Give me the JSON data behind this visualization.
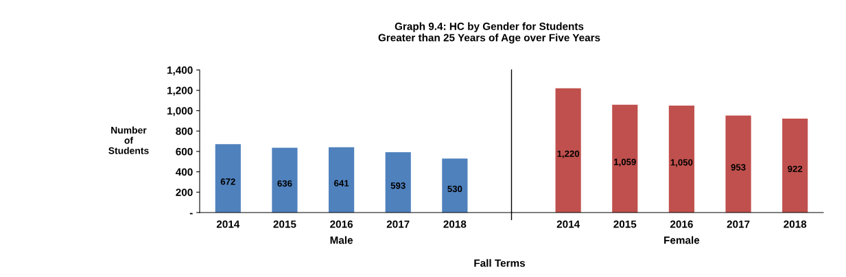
{
  "chart_data": {
    "type": "bar",
    "title": "Graph 9.4: HC by Gender for Students\nGreater than 25 Years of Age over Five Years",
    "xlabel": "Fall Terms",
    "ylabel": "Number\nof\nStudents",
    "categories": [
      "2014",
      "2015",
      "2016",
      "2017",
      "2018",
      null,
      "2014",
      "2015",
      "2016",
      "2017",
      "2018"
    ],
    "series": [
      {
        "name": "Male",
        "color": "#4f81bd",
        "values": [
          672,
          636,
          641,
          593,
          530,
          null,
          null,
          null,
          null,
          null,
          null
        ],
        "value_labels": [
          "672",
          "636",
          "641",
          "593",
          "530",
          null,
          null,
          null,
          null,
          null,
          null
        ]
      },
      {
        "name": "Female",
        "color": "#c0504d",
        "values": [
          null,
          null,
          null,
          null,
          null,
          null,
          1220,
          1059,
          1050,
          953,
          922
        ],
        "value_labels": [
          null,
          null,
          null,
          null,
          null,
          null,
          "1,220",
          "1,059",
          "1,050",
          "953",
          "922"
        ]
      }
    ],
    "ylim": [
      0,
      1400
    ],
    "yticks": [
      {
        "value": 0,
        "label": "-"
      },
      {
        "value": 200,
        "label": "200"
      },
      {
        "value": 400,
        "label": "400"
      },
      {
        "value": 600,
        "label": "600"
      },
      {
        "value": 800,
        "label": "800"
      },
      {
        "value": 1000,
        "label": "1,000"
      },
      {
        "value": 1200,
        "label": "1,200"
      },
      {
        "value": 1400,
        "label": "1,400"
      }
    ],
    "legend": false
  }
}
